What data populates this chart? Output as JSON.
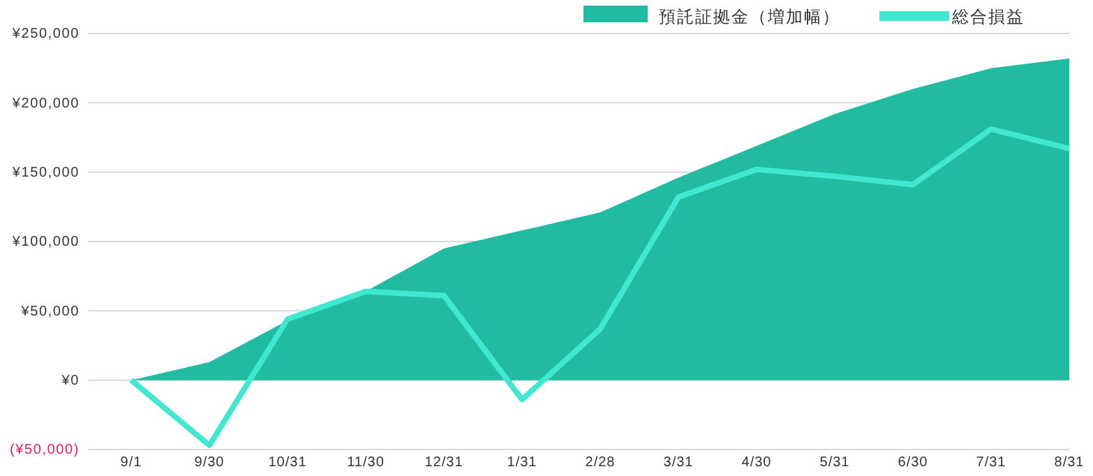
{
  "chart_data": {
    "type": "area",
    "categories": [
      "9/1",
      "9/30",
      "10/31",
      "11/30",
      "12/31",
      "1/31",
      "2/28",
      "3/31",
      "4/30",
      "5/31",
      "6/30",
      "7/31",
      "8/31"
    ],
    "series": [
      {
        "name": "預託証拠金（増加幅）",
        "color": "#20bba0",
        "values": [
          0,
          13000,
          43000,
          64000,
          95000,
          108000,
          121000,
          146000,
          169000,
          192000,
          210000,
          225000,
          232000
        ]
      },
      {
        "name": "総合損益",
        "type": "line",
        "color": "#40e8d0",
        "values": [
          0,
          -47000,
          44000,
          64000,
          61000,
          -14000,
          37000,
          132000,
          152000,
          147000,
          141000,
          181000,
          167000
        ]
      }
    ],
    "ylim": [
      -50000,
      250000
    ],
    "yticks": [
      {
        "value": -50000,
        "label": "(¥50,000)"
      },
      {
        "value": 0,
        "label": "¥0"
      },
      {
        "value": 50000,
        "label": "¥50,000"
      },
      {
        "value": 100000,
        "label": "¥100,000"
      },
      {
        "value": 150000,
        "label": "¥150,000"
      },
      {
        "value": 200000,
        "label": "¥200,000"
      },
      {
        "value": 250000,
        "label": "¥250,000"
      }
    ],
    "grid": "y",
    "legend": "top right",
    "line_style": "solid"
  }
}
